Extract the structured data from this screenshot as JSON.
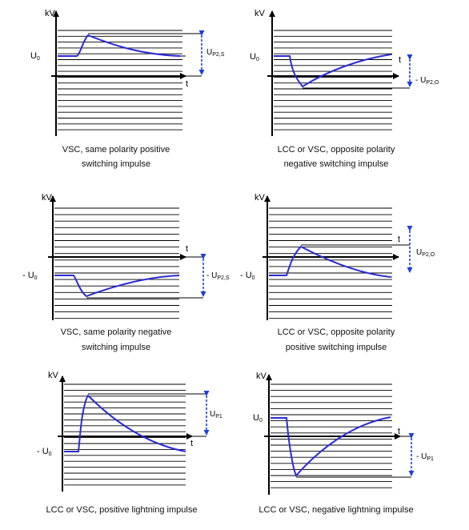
{
  "colors": {
    "waveform": "#2b2bd6",
    "dimension": "#1f3fe0",
    "grid": "#000000",
    "background": "#ffffff"
  },
  "panels": [
    {
      "id": "p1",
      "y_axis": "kV",
      "x_axis": "t",
      "level_label": "U",
      "level_sub": "0",
      "dim_label": "U",
      "dim_sub": "P2,S",
      "caption_lines": [
        "VSC, same polarity positive",
        "switching impulse"
      ]
    },
    {
      "id": "p2",
      "y_axis": "kV",
      "x_axis": "t",
      "level_label": "U",
      "level_sub": "0",
      "dim_label": "- U",
      "dim_sub": "P2,O",
      "caption_lines": [
        "LCC or VSC, opposite polarity",
        "negative switching impulse"
      ]
    },
    {
      "id": "p3",
      "y_axis": "kV",
      "x_axis": "t",
      "level_label": "- U",
      "level_sub": "0",
      "dim_label": "- U",
      "dim_sub": "P2,S",
      "caption_lines": [
        "VSC, same polarity negative",
        "switching impulse"
      ]
    },
    {
      "id": "p4",
      "y_axis": "kV",
      "x_axis": "t",
      "level_label": "- U",
      "level_sub": "0",
      "dim_label": "U",
      "dim_sub": "P2,O",
      "caption_lines": [
        "LCC or VSC, opposite polarity",
        "positive switching impulse"
      ]
    },
    {
      "id": "p5",
      "y_axis": "kV",
      "x_axis": "t",
      "level_label": "- U",
      "level_sub": "0",
      "dim_label": "U",
      "dim_sub": "P1",
      "caption_lines": [
        "LCC or VSC, positive lightning impulse"
      ]
    },
    {
      "id": "p6",
      "y_axis": "kV",
      "x_axis": "t",
      "level_label": "U",
      "level_sub": "0",
      "dim_label": "- U",
      "dim_sub": "P1",
      "caption_lines": [
        "LCC or VSC, negative lightning impulse"
      ]
    }
  ]
}
